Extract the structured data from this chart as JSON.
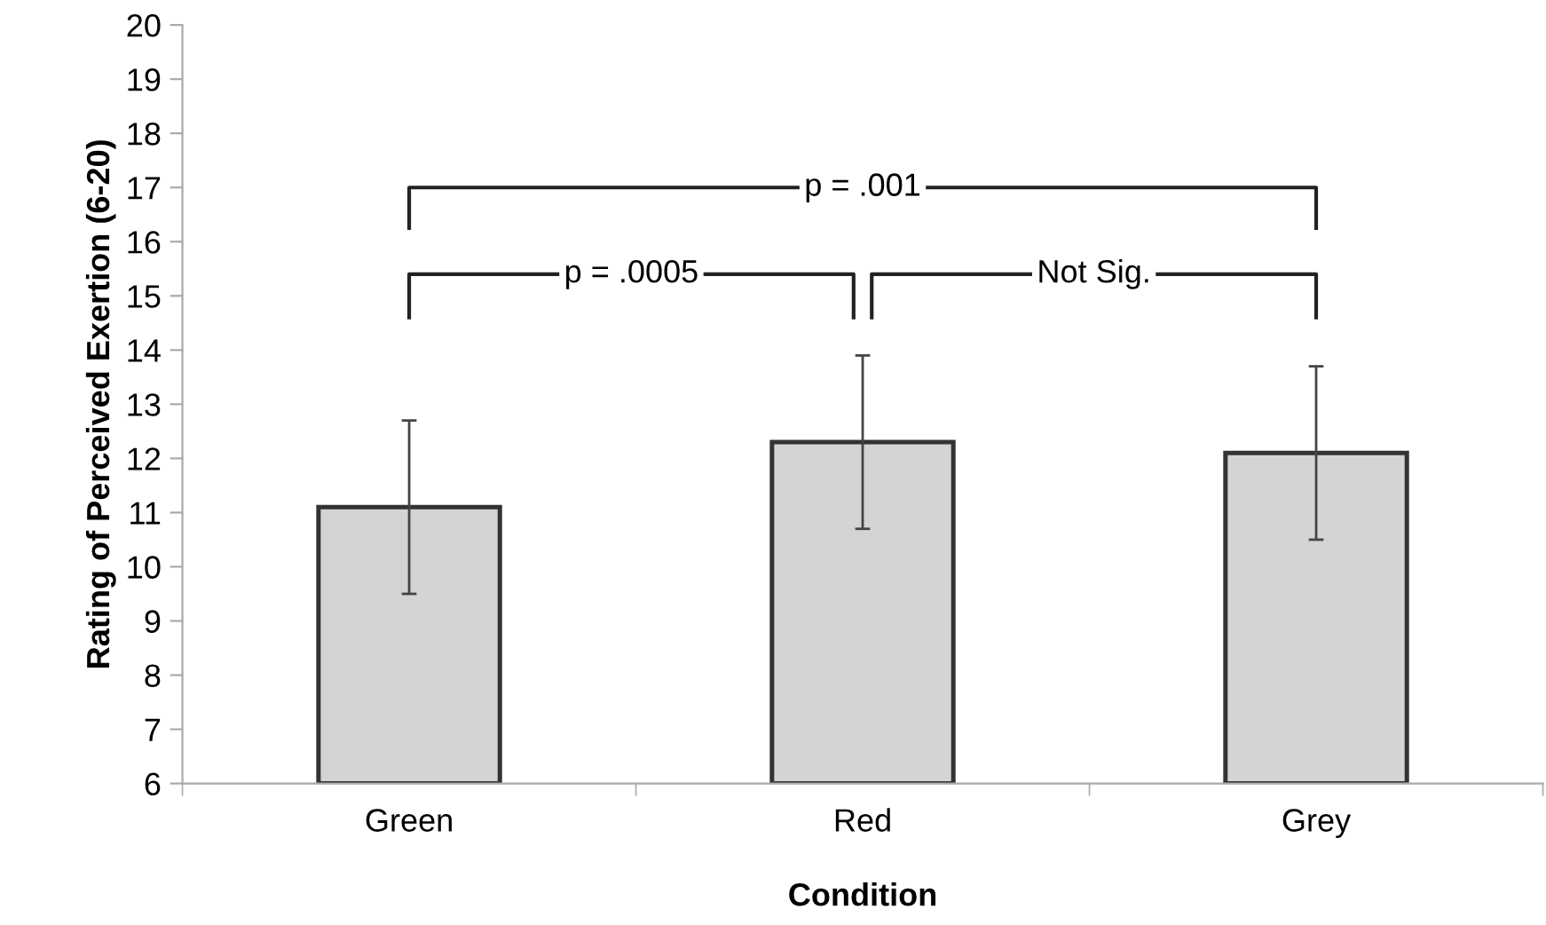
{
  "chart_data": {
    "type": "bar",
    "xlabel": "Condition",
    "ylabel": "Rating of Perceived Exertion (6-20)",
    "categories": [
      "Green",
      "Red",
      "Grey"
    ],
    "values": [
      11.1,
      12.3,
      12.1
    ],
    "errors": [
      1.6,
      1.6,
      1.6
    ],
    "color": "#d4d4d4",
    "ylim": [
      6,
      20
    ],
    "yticks": [
      6,
      7,
      8,
      9,
      10,
      11,
      12,
      13,
      14,
      15,
      16,
      17,
      18,
      19,
      20
    ],
    "grid": false,
    "legend": false,
    "annotations": [
      "p = .0005",
      "Not Sig.",
      "p = .001"
    ]
  }
}
